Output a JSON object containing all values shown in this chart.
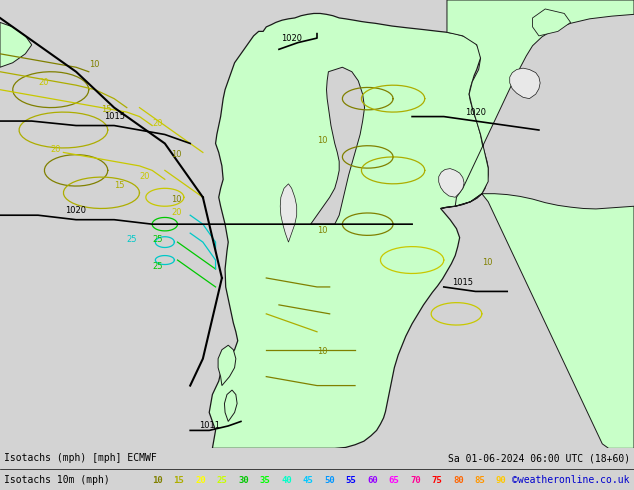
{
  "title_left": "Isotachs (mph) [mph] ECMWF",
  "title_right": "Sa 01-06-2024 06:00 UTC (18+60)",
  "subtitle_left": "Isotachs 10m (mph)",
  "credit": "©weatheronline.co.uk",
  "legend_values": [
    10,
    15,
    20,
    25,
    30,
    35,
    40,
    45,
    50,
    55,
    60,
    65,
    70,
    75,
    80,
    85,
    90
  ],
  "legend_colors": [
    "#808000",
    "#adad00",
    "#ffff00",
    "#c8ff00",
    "#00c800",
    "#00ff00",
    "#00ffc8",
    "#00c8ff",
    "#0096ff",
    "#0000ff",
    "#9600ff",
    "#ff00ff",
    "#ff0096",
    "#ff0000",
    "#ff6400",
    "#ff9600",
    "#ffc800"
  ],
  "bg_color": "#d3d3d3",
  "land_color": "#c8ffc8",
  "sea_color": "#d3d3d3",
  "water_body_color": "#d3d3d3",
  "figsize": [
    6.34,
    4.9
  ],
  "dpi": 100,
  "bottom_bar_height": 0.085
}
